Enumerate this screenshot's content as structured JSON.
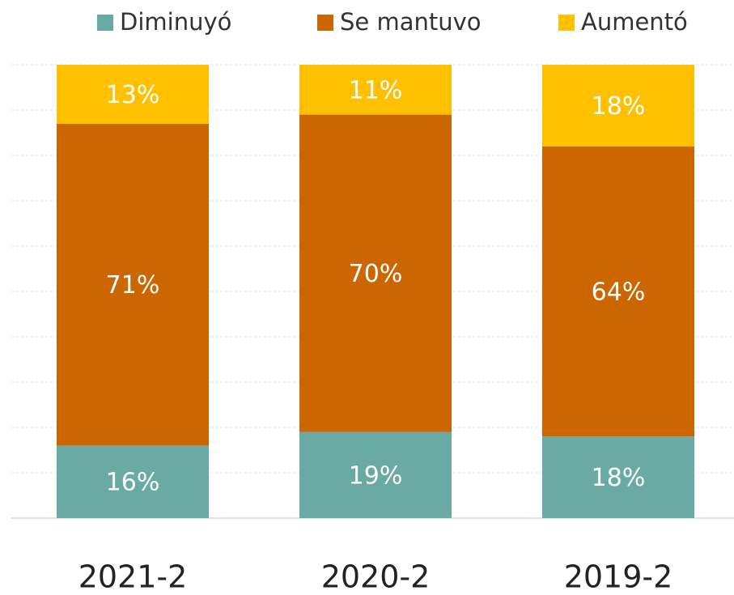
{
  "chart_data": {
    "type": "stacked_bar",
    "categories": [
      "2021-2",
      "2020-2",
      "2019-2"
    ],
    "series": [
      {
        "name": "Diminuyó",
        "color": "#6aaaa5",
        "values": [
          16,
          19,
          18
        ],
        "value_labels": [
          "16%",
          "19%",
          "18%"
        ]
      },
      {
        "name": "Se mantuvo",
        "color": "#cc6600",
        "values": [
          71,
          70,
          64
        ],
        "value_labels": [
          "71%",
          "70%",
          "64%"
        ]
      },
      {
        "name": "Aumentó",
        "color": "#ffc000",
        "values": [
          13,
          11,
          18
        ],
        "value_labels": [
          "13%",
          "11%",
          "18%"
        ]
      }
    ],
    "ylim": [
      0,
      100
    ],
    "yticks": [
      0,
      10,
      20,
      30,
      40,
      50,
      60,
      70,
      80,
      90,
      100
    ],
    "grid": true,
    "legend": "top"
  }
}
